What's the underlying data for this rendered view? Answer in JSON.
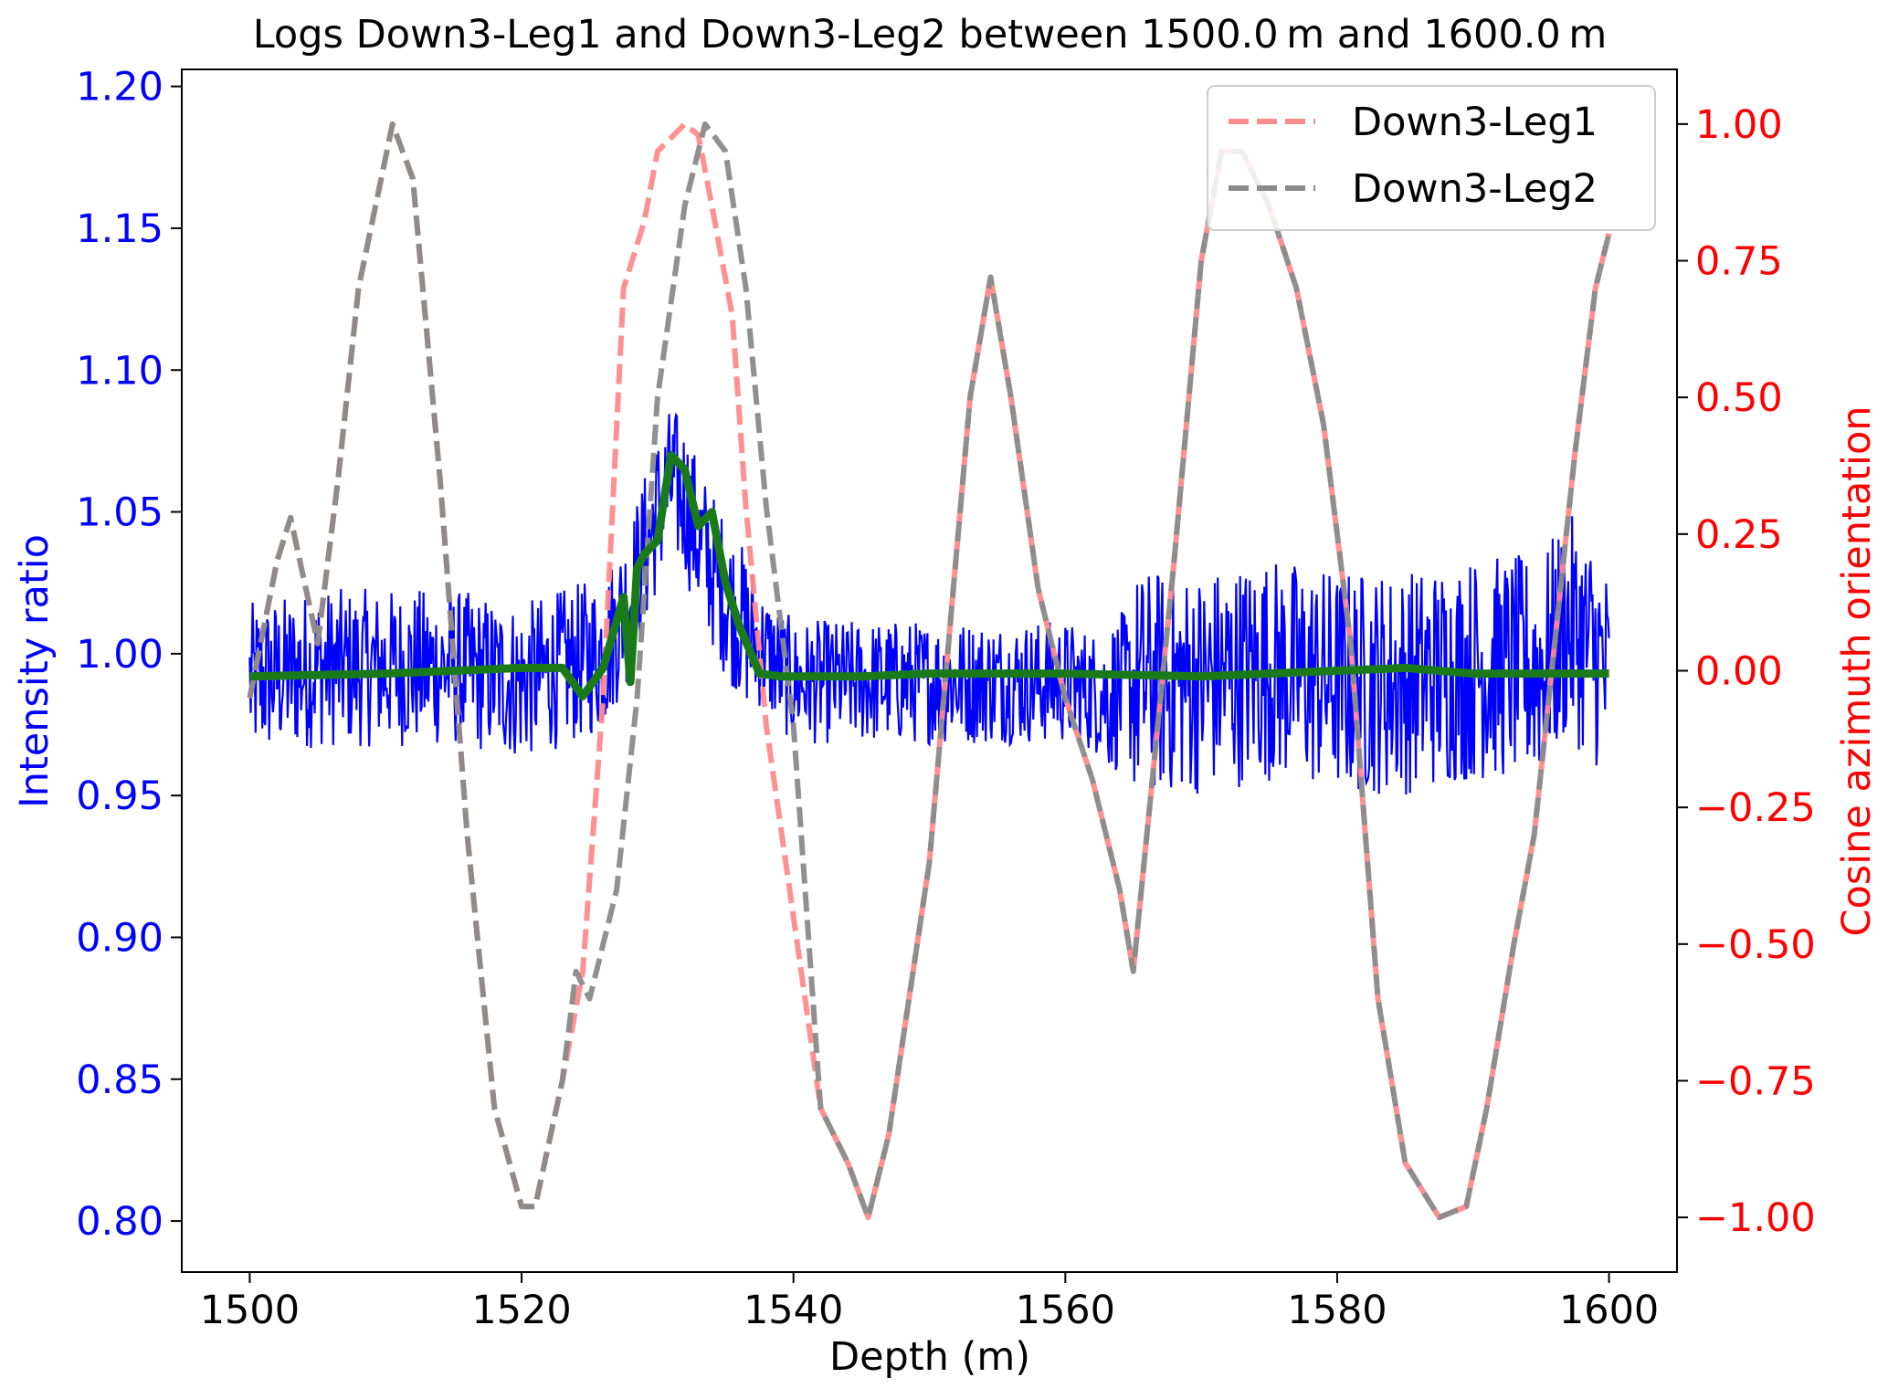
{
  "chart_data": {
    "type": "line",
    "title": "Logs Down3-Leg1 and Down3-Leg2 between 1500.0 m and 1600.0 m",
    "xlabel": "Depth (m)",
    "ylabel_left": "Intensity ratio",
    "ylabel_right": "Cosine azimuth orientation",
    "xlim": [
      1495,
      1605
    ],
    "ylim_left": [
      0.782,
      1.206
    ],
    "ylim_right": [
      -1.1,
      1.1
    ],
    "x_ticks": [
      "1500",
      "1520",
      "1540",
      "1560",
      "1580",
      "1600"
    ],
    "y_ticks_left": [
      "0.80",
      "0.85",
      "0.90",
      "0.95",
      "1.00",
      "1.05",
      "1.10",
      "1.15",
      "1.20"
    ],
    "y_ticks_right": [
      "−1.00",
      "−0.75",
      "−0.50",
      "−0.25",
      "0.00",
      "0.25",
      "0.50",
      "0.75",
      "1.00"
    ],
    "legend": {
      "placement": "top-right",
      "entries": [
        "Down3-Leg1",
        "Down3-Leg2"
      ]
    },
    "grid": false,
    "colors": {
      "intensity": "#0000ff",
      "smoothed": "#1a7a1a",
      "leg1": "#ff8a8a",
      "leg2": "#8a8a8a",
      "left_axis": "#0000ff",
      "right_axis": "#ff0000"
    },
    "series": [
      {
        "name": "Down3-Leg1",
        "axis": "right",
        "style": "dashed",
        "x": [
          1500,
          1502,
          1503,
          1505,
          1506.5,
          1508,
          1510.5,
          1512,
          1514,
          1516,
          1518,
          1520,
          1521,
          1523,
          1524.5,
          1526,
          1527.5,
          1529,
          1530,
          1532,
          1533,
          1534,
          1535.5,
          1536.5,
          1538,
          1540,
          1542,
          1544,
          1545.5,
          1547,
          1550,
          1553,
          1554.5,
          1556,
          1558,
          1560,
          1562,
          1564,
          1565,
          1566,
          1568,
          1570,
          1571.5,
          1573,
          1575,
          1577,
          1579,
          1581,
          1583,
          1585,
          1587.5,
          1589.5,
          1591,
          1593,
          1594.5,
          1596,
          1597.5,
          1599,
          1600
        ],
        "values": [
          -0.05,
          0.2,
          0.28,
          0.05,
          0.35,
          0.7,
          1.0,
          0.9,
          0.35,
          -0.3,
          -0.8,
          -0.98,
          -0.98,
          -0.75,
          -0.55,
          -0.05,
          0.7,
          0.82,
          0.95,
          1.0,
          0.98,
          0.85,
          0.65,
          0.3,
          -0.1,
          -0.45,
          -0.8,
          -0.9,
          -1.0,
          -0.85,
          -0.35,
          0.5,
          0.72,
          0.5,
          0.15,
          -0.05,
          -0.2,
          -0.4,
          -0.55,
          -0.3,
          0.2,
          0.75,
          0.95,
          0.95,
          0.85,
          0.7,
          0.45,
          0.05,
          -0.6,
          -0.9,
          -1.0,
          -0.98,
          -0.8,
          -0.5,
          -0.3,
          0.05,
          0.4,
          0.7,
          0.8
        ]
      },
      {
        "name": "Down3-Leg2",
        "axis": "right",
        "style": "dashed",
        "x": [
          1500,
          1502,
          1503,
          1505,
          1506.5,
          1508,
          1510.5,
          1512,
          1514,
          1516,
          1518,
          1520,
          1521,
          1523,
          1524,
          1525,
          1527,
          1528.5,
          1530,
          1532,
          1533.5,
          1535,
          1536.5,
          1538,
          1540,
          1542,
          1544,
          1545.5,
          1547,
          1550,
          1553,
          1554.5,
          1556,
          1558,
          1560,
          1562,
          1564,
          1565,
          1566,
          1568,
          1570,
          1571.5,
          1573,
          1575,
          1577,
          1579,
          1581,
          1583,
          1585,
          1587.5,
          1589.5,
          1591,
          1593,
          1594.5,
          1596,
          1597.5,
          1599,
          1600
        ],
        "values": [
          -0.05,
          0.2,
          0.28,
          0.05,
          0.35,
          0.7,
          1.0,
          0.9,
          0.35,
          -0.3,
          -0.8,
          -0.98,
          -0.98,
          -0.75,
          -0.55,
          -0.6,
          -0.4,
          -0.05,
          0.5,
          0.85,
          1.0,
          0.95,
          0.7,
          0.3,
          -0.1,
          -0.8,
          -0.9,
          -1.0,
          -0.85,
          -0.35,
          0.5,
          0.72,
          0.5,
          0.15,
          -0.05,
          -0.2,
          -0.4,
          -0.55,
          -0.3,
          0.2,
          0.75,
          0.95,
          0.95,
          0.85,
          0.7,
          0.45,
          0.05,
          -0.6,
          -0.9,
          -1.0,
          -0.98,
          -0.8,
          -0.5,
          -0.3,
          0.05,
          0.4,
          0.7,
          0.8
        ]
      },
      {
        "name": "",
        "axis": "left",
        "style": "solid-thick",
        "x": [
          1500,
          1510,
          1520,
          1523,
          1524.5,
          1526,
          1527.5,
          1528,
          1528.5,
          1529,
          1530,
          1531,
          1532,
          1533,
          1534,
          1535,
          1536,
          1537.5,
          1539,
          1545,
          1550,
          1560,
          1570,
          1575,
          1580,
          1585,
          1590,
          1595,
          1600
        ],
        "values": [
          0.992,
          0.993,
          0.995,
          0.995,
          0.985,
          0.995,
          1.02,
          0.99,
          1.03,
          1.035,
          1.04,
          1.07,
          1.065,
          1.045,
          1.05,
          1.025,
          1.01,
          0.993,
          0.992,
          0.992,
          0.993,
          0.993,
          0.992,
          0.993,
          0.994,
          0.995,
          0.993,
          0.993,
          0.993
        ]
      },
      {
        "name": "",
        "axis": "left",
        "style": "solid-thin-noisy",
        "x": [
          1500,
          1505,
          1510,
          1515,
          1520,
          1523,
          1526,
          1528,
          1530,
          1531,
          1532,
          1533,
          1535,
          1537,
          1540,
          1545,
          1550,
          1555,
          1560,
          1563,
          1566,
          1570,
          1575,
          1580,
          1585,
          1590,
          1595,
          1597,
          1599,
          1600
        ],
        "values": [
          0.99,
          0.995,
          0.995,
          0.995,
          0.99,
          0.995,
          1.0,
          1.02,
          1.05,
          1.06,
          1.055,
          1.04,
          1.02,
          1.005,
          0.99,
          0.99,
          0.99,
          0.99,
          0.99,
          0.985,
          0.99,
          0.99,
          0.995,
          0.99,
          0.99,
          0.995,
          0.995,
          1.01,
          1.0,
          0.99
        ]
      }
    ]
  }
}
